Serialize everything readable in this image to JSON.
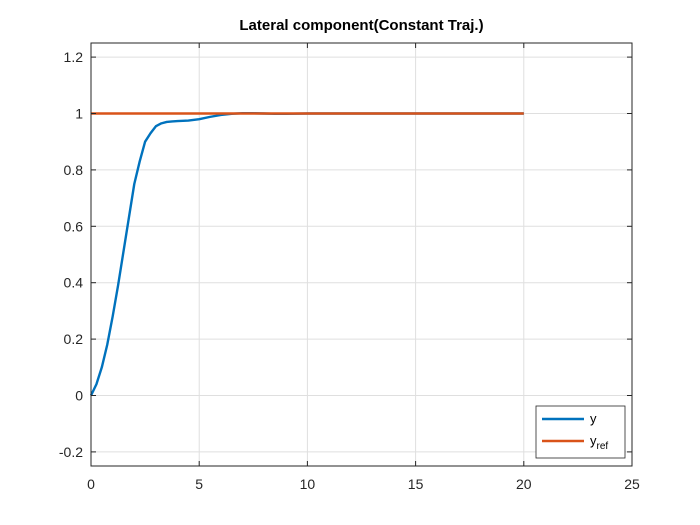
{
  "chart_data": {
    "type": "line",
    "title": "Lateral component(Constant Traj.)",
    "xlabel": "",
    "ylabel": "",
    "xlim": [
      0,
      25
    ],
    "ylim": [
      -0.25,
      1.25
    ],
    "xticks": [
      0,
      5,
      10,
      15,
      20,
      25
    ],
    "yticks": [
      -0.2,
      0,
      0.2,
      0.4,
      0.6,
      0.8,
      1,
      1.2
    ],
    "xtick_labels": [
      "0",
      "5",
      "10",
      "15",
      "20",
      "25"
    ],
    "ytick_labels": [
      "-0.2",
      "0",
      "0.2",
      "0.4",
      "0.6",
      "0.8",
      "1",
      "1.2"
    ],
    "grid": true,
    "legend_position": "bottom-right",
    "series": [
      {
        "name": "y",
        "name_base": "y",
        "name_sub": "",
        "color": "#0072BD",
        "x": [
          0,
          0.25,
          0.5,
          0.75,
          1,
          1.25,
          1.5,
          1.75,
          2,
          2.25,
          2.5,
          2.75,
          3,
          3.25,
          3.5,
          3.75,
          4,
          4.5,
          5,
          5.5,
          6,
          6.5,
          7,
          7.5,
          8,
          8.5,
          9,
          10,
          12,
          14,
          16,
          18,
          20
        ],
        "y": [
          0,
          0.04,
          0.1,
          0.18,
          0.28,
          0.39,
          0.51,
          0.63,
          0.75,
          0.83,
          0.9,
          0.93,
          0.955,
          0.965,
          0.97,
          0.972,
          0.973,
          0.975,
          0.98,
          0.988,
          0.995,
          0.999,
          1.001,
          1.001,
          1.0,
          0.999,
          0.999,
          1.0,
          1.0,
          1.0,
          1.0,
          1.0,
          1.0
        ]
      },
      {
        "name": "yref",
        "name_base": "y",
        "name_sub": "ref",
        "color": "#D95319",
        "x": [
          0,
          20
        ],
        "y": [
          1,
          1
        ]
      }
    ]
  }
}
